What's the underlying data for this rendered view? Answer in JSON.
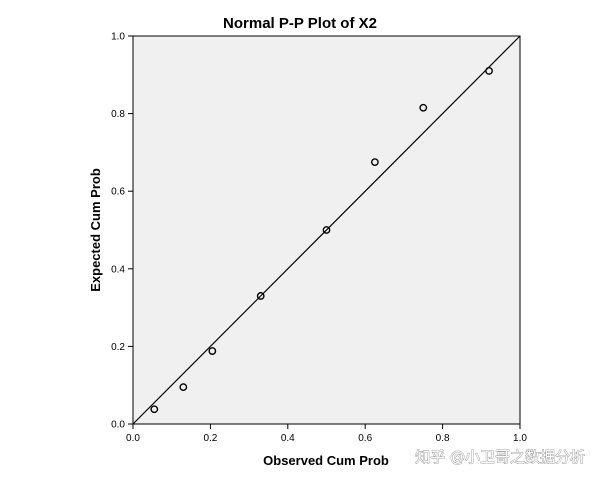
{
  "chart_data": {
    "type": "scatter",
    "title": "Normal P-P Plot of X2",
    "xlabel": "Observed Cum Prob",
    "ylabel": "Expected Cum Prob",
    "xlim": [
      0.0,
      1.0
    ],
    "ylim": [
      0.0,
      1.0
    ],
    "x_ticks": [
      "0.0",
      "0.2",
      "0.4",
      "0.6",
      "0.8",
      "1.0"
    ],
    "y_ticks": [
      "0.0",
      "0.2",
      "0.4",
      "0.6",
      "0.8",
      "1.0"
    ],
    "grid": false,
    "reference_line": {
      "from": [
        0,
        0
      ],
      "to": [
        1,
        1
      ]
    },
    "points": [
      {
        "x": 0.055,
        "y": 0.038
      },
      {
        "x": 0.13,
        "y": 0.095
      },
      {
        "x": 0.205,
        "y": 0.188
      },
      {
        "x": 0.33,
        "y": 0.33
      },
      {
        "x": 0.5,
        "y": 0.5
      },
      {
        "x": 0.625,
        "y": 0.675
      },
      {
        "x": 0.75,
        "y": 0.815
      },
      {
        "x": 0.92,
        "y": 0.91
      }
    ],
    "colors": {
      "plot_background": "#f0f0f0",
      "marker": "#000000",
      "line": "#000000"
    }
  },
  "watermark": "知乎 @小卫哥之数据分析"
}
